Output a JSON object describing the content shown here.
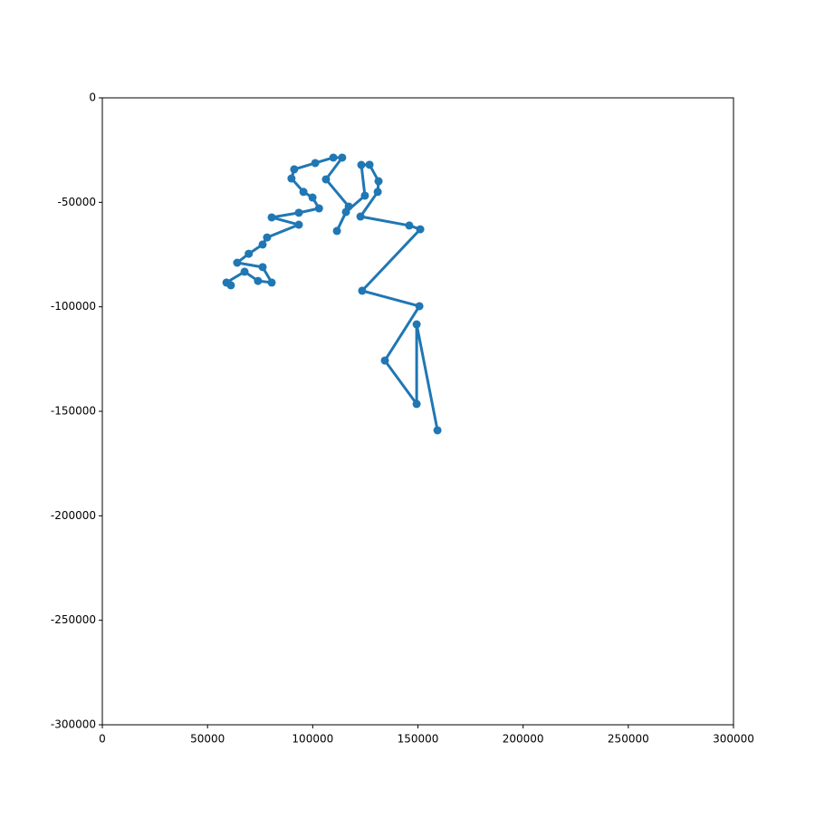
{
  "chart_data": {
    "type": "line",
    "color": "#1f77b4",
    "markers": true,
    "x": [
      61100,
      59000,
      67600,
      74000,
      80500,
      76200,
      64100,
      69600,
      76200,
      78300,
      93400,
      80500,
      93400,
      103000,
      99900,
      95600,
      89900,
      91200,
      101200,
      109800,
      114000,
      106300,
      117100,
      111500,
      115800,
      124800,
      123100,
      127000,
      131300,
      130900,
      122700,
      145900,
      151100,
      123500,
      150700,
      134300,
      149400,
      149400,
      159300
    ],
    "values": [
      -89700,
      -88400,
      -83200,
      -87600,
      -88400,
      -81000,
      -78900,
      -74600,
      -70200,
      -66800,
      -60700,
      -57200,
      -55000,
      -52900,
      -47700,
      -45000,
      -38600,
      -34200,
      -31200,
      -28600,
      -28600,
      -39000,
      -52000,
      -63700,
      -54600,
      -46800,
      -32100,
      -32000,
      -39900,
      -45000,
      -56800,
      -61100,
      -62900,
      -92300,
      -99700,
      -125700,
      -146500,
      -108400,
      -159100
    ],
    "xlim": [
      0,
      300000
    ],
    "ylim": [
      -300000,
      0
    ],
    "xticks": [
      0,
      50000,
      100000,
      150000,
      200000,
      250000,
      300000
    ],
    "yticks": [
      0,
      -50000,
      -100000,
      -150000,
      -200000,
      -250000,
      -300000
    ]
  }
}
